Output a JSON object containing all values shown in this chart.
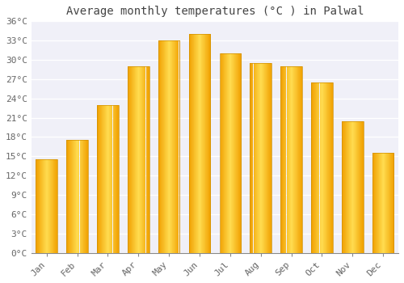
{
  "months": [
    "Jan",
    "Feb",
    "Mar",
    "Apr",
    "May",
    "Jun",
    "Jul",
    "Aug",
    "Sep",
    "Oct",
    "Nov",
    "Dec"
  ],
  "temperatures": [
    14.5,
    17.5,
    23.0,
    29.0,
    33.0,
    34.0,
    31.0,
    29.5,
    29.0,
    26.5,
    20.5,
    15.5
  ],
  "bar_color_center": "#FFD040",
  "bar_color_edge": "#F0A000",
  "title": "Average monthly temperatures (°C ) in Palwal",
  "ylim": [
    0,
    36
  ],
  "yticks": [
    0,
    3,
    6,
    9,
    12,
    15,
    18,
    21,
    24,
    27,
    30,
    33,
    36
  ],
  "ytick_labels": [
    "0°C",
    "3°C",
    "6°C",
    "9°C",
    "12°C",
    "15°C",
    "18°C",
    "21°C",
    "24°C",
    "27°C",
    "30°C",
    "33°C",
    "36°C"
  ],
  "background_color": "#ffffff",
  "plot_bg_color": "#f0f0f8",
  "grid_color": "#ffffff",
  "title_fontsize": 10,
  "tick_fontsize": 8,
  "bar_width": 0.7,
  "title_color": "#444444",
  "tick_color": "#666666"
}
